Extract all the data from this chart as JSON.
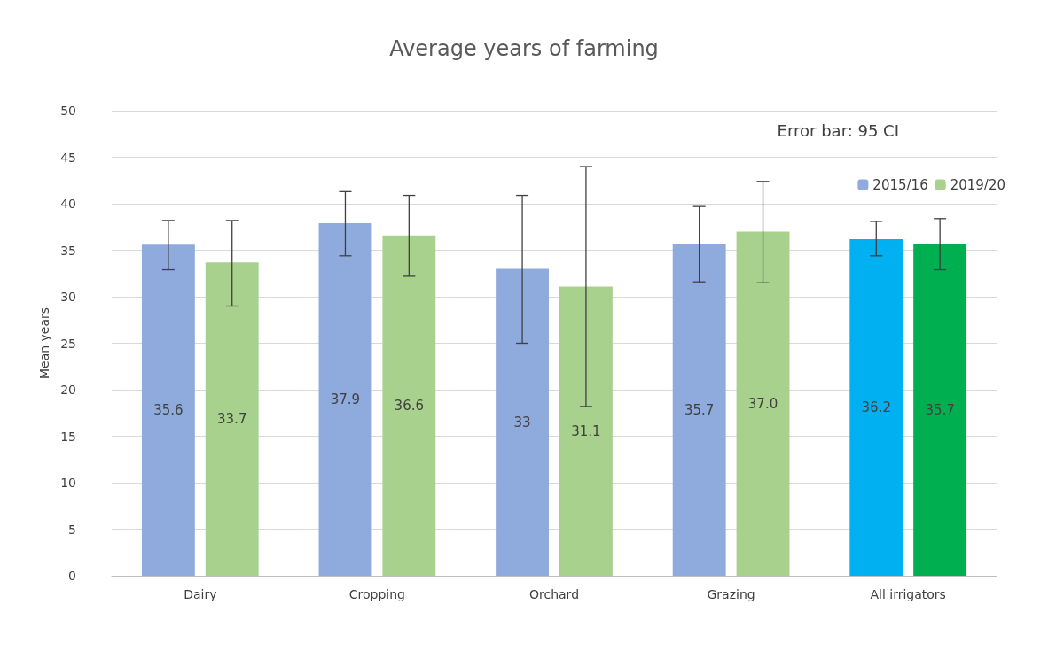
{
  "chart_data": {
    "type": "bar",
    "title": "Average years of farming",
    "ylabel": "Mean years",
    "categories": [
      "Dairy",
      "Cropping",
      "Orchard",
      "Grazing",
      "All irrigators"
    ],
    "series": [
      {
        "name": "2015/16",
        "color": "#8faadc",
        "colors": [
          "#8faadc",
          "#8faadc",
          "#8faadc",
          "#8faadc",
          "#00b0f0"
        ],
        "values": [
          35.6,
          37.9,
          33,
          35.7,
          36.2
        ],
        "value_labels": [
          "35.6",
          "37.9",
          "33",
          "35.7",
          "36.2"
        ],
        "errors": [
          [
            32.9,
            38.2
          ],
          [
            34.4,
            41.3
          ],
          [
            25.0,
            40.9
          ],
          [
            31.6,
            39.7
          ],
          [
            34.4,
            38.1
          ]
        ]
      },
      {
        "name": "2019/20",
        "color": "#a9d18e",
        "colors": [
          "#a9d18e",
          "#a9d18e",
          "#a9d18e",
          "#a9d18e",
          "#00b050"
        ],
        "values": [
          33.7,
          36.6,
          31.1,
          37.0,
          35.7
        ],
        "value_labels": [
          "33.7",
          "36.6",
          "31.1",
          "37.0",
          "35.7"
        ],
        "errors": [
          [
            29.0,
            38.2
          ],
          [
            32.2,
            40.9
          ],
          [
            18.2,
            44.0
          ],
          [
            31.5,
            42.4
          ],
          [
            32.9,
            38.4
          ]
        ]
      }
    ],
    "ylim": [
      0,
      50
    ],
    "yticks": [
      0,
      5,
      10,
      15,
      20,
      25,
      30,
      35,
      40,
      45,
      50
    ],
    "grid": "y",
    "legend": "top right",
    "annotations": [
      "Error bar: 95 CI"
    ]
  }
}
